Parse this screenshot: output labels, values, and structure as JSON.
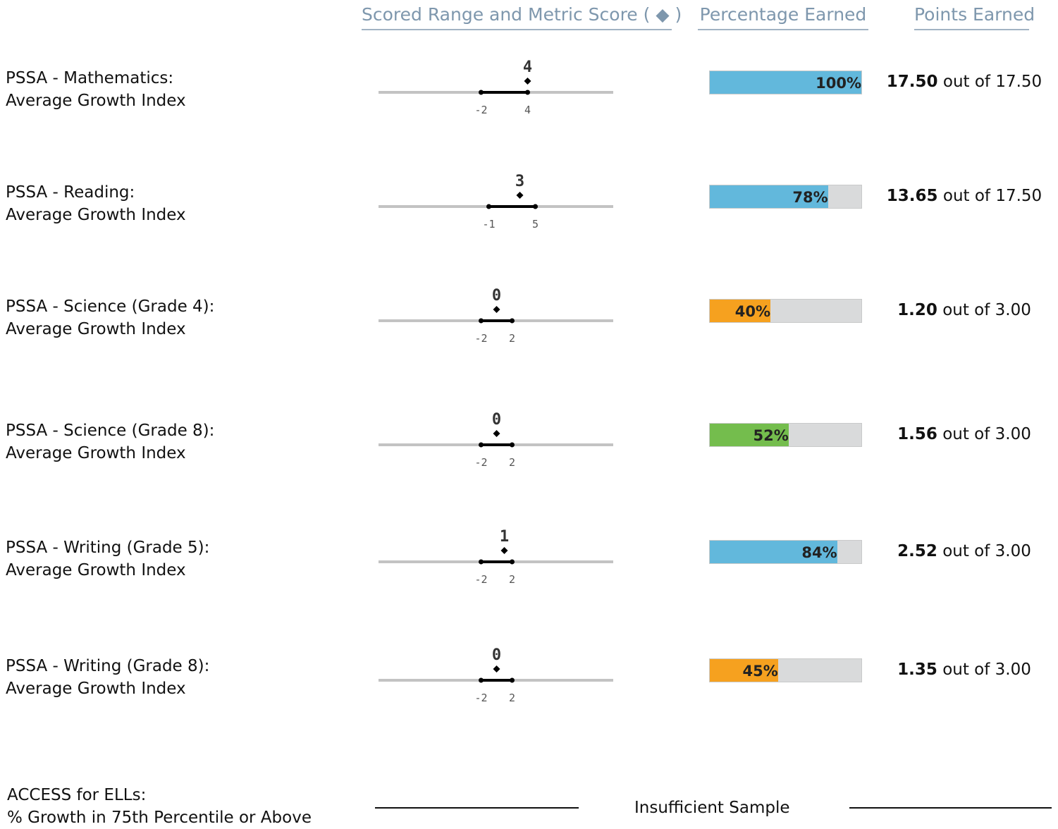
{
  "headers": {
    "range": "Scored Range and Metric Score ( ◆ )",
    "percentage": "Percentage Earned",
    "points": "Points Earned"
  },
  "colors": {
    "blue": "#62b8dc",
    "orange": "#f6a11f",
    "green": "#74bd4d",
    "track": "#d9dadb"
  },
  "metrics": [
    {
      "line1": "PSSA - Mathematics:",
      "line2": "Average Growth Index",
      "range_low": -2,
      "range_high": 4,
      "score": 4,
      "range_low_label": "-2",
      "range_high_label": "4",
      "score_label": "4",
      "percent": 100,
      "percent_label": "100%",
      "bar_color": "#62b8dc",
      "points": "17.50",
      "out_of_text": "out of",
      "max_points": "17.50"
    },
    {
      "line1": "PSSA - Reading:",
      "line2": "Average Growth Index",
      "range_low": -1,
      "range_high": 5,
      "score": 3,
      "range_low_label": "-1",
      "range_high_label": "5",
      "score_label": "3",
      "percent": 78,
      "percent_label": "78%",
      "bar_color": "#62b8dc",
      "points": "13.65",
      "out_of_text": "out of",
      "max_points": "17.50"
    },
    {
      "line1": "PSSA - Science (Grade 4):",
      "line2": "Average Growth Index",
      "range_low": -2,
      "range_high": 2,
      "score": 0,
      "range_low_label": "-2",
      "range_high_label": "2",
      "score_label": "0",
      "percent": 40,
      "percent_label": "40%",
      "bar_color": "#f6a11f",
      "points": "1.20",
      "out_of_text": "out of",
      "max_points": "3.00"
    },
    {
      "line1": "PSSA - Science (Grade 8):",
      "line2": "Average Growth Index",
      "range_low": -2,
      "range_high": 2,
      "score": 0,
      "range_low_label": "-2",
      "range_high_label": "2",
      "score_label": "0",
      "percent": 52,
      "percent_label": "52%",
      "bar_color": "#74bd4d",
      "points": "1.56",
      "out_of_text": "out of",
      "max_points": "3.00"
    },
    {
      "line1": "PSSA - Writing (Grade 5):",
      "line2": "Average Growth Index",
      "range_low": -2,
      "range_high": 2,
      "score": 1,
      "range_low_label": "-2",
      "range_high_label": "2",
      "score_label": "1",
      "percent": 84,
      "percent_label": "84%",
      "bar_color": "#62b8dc",
      "points": "2.52",
      "out_of_text": "out of",
      "max_points": "3.00"
    },
    {
      "line1": "PSSA - Writing (Grade 8):",
      "line2": "Average Growth Index",
      "range_low": -2,
      "range_high": 2,
      "score": 0,
      "range_low_label": "-2",
      "range_high_label": "2",
      "score_label": "0",
      "percent": 45,
      "percent_label": "45%",
      "bar_color": "#f6a11f",
      "points": "1.35",
      "out_of_text": "out of",
      "max_points": "3.00"
    }
  ],
  "footer": {
    "line1": "ACCESS for ELLs:",
    "line2": "% Growth in 75th Percentile or Above",
    "status": "Insufficient Sample"
  }
}
